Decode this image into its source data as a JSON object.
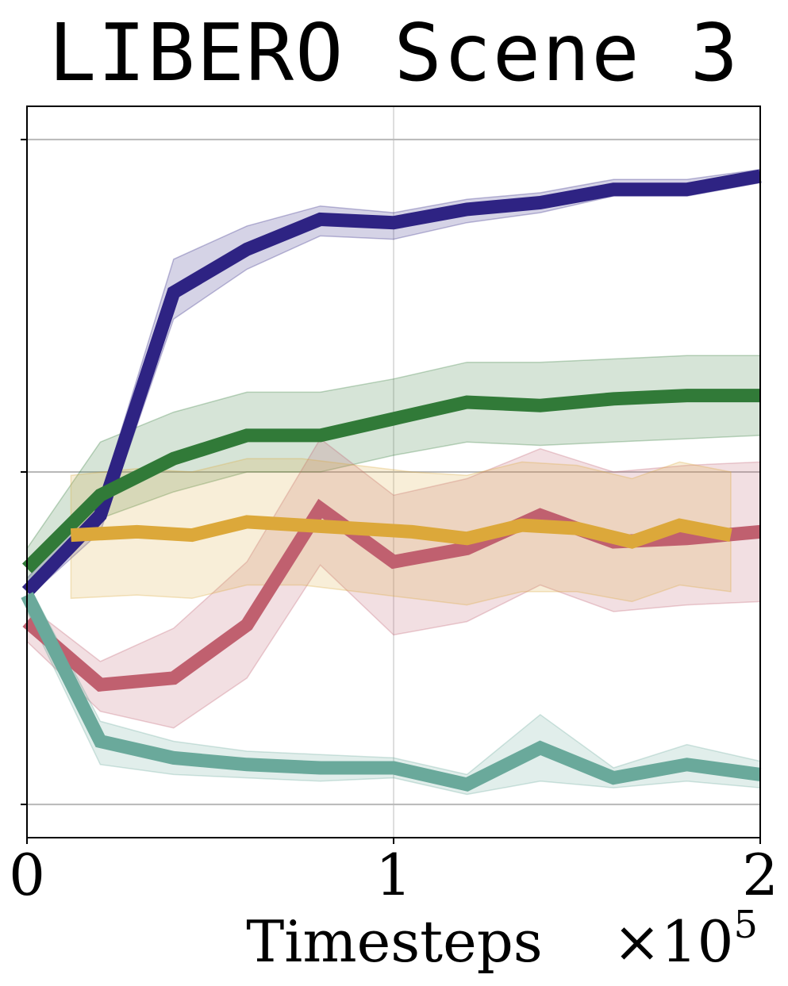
{
  "chart_data": {
    "type": "line",
    "title": "LIBERO Scene 3",
    "xlabel": "Timesteps",
    "x_multiplier_label": "×10",
    "x_multiplier_exp": "5",
    "xlim": [
      0,
      2
    ],
    "ylim": [
      -0.1,
      2.1
    ],
    "xticks": [
      {
        "v": 0,
        "label": "0"
      },
      {
        "v": 1,
        "label": "1"
      },
      {
        "v": 2,
        "label": "2"
      }
    ],
    "yticks": [
      0,
      1,
      2
    ],
    "grid": true,
    "series": [
      {
        "color": "#2e2383",
        "x": [
          0,
          0.2,
          0.4,
          0.6,
          0.8,
          1.0,
          1.2,
          1.4,
          1.6,
          1.8,
          2.0
        ],
        "y": [
          0.64,
          0.87,
          1.54,
          1.67,
          1.76,
          1.75,
          1.79,
          1.81,
          1.85,
          1.85,
          1.89
        ],
        "lower": [
          0.62,
          0.82,
          1.46,
          1.61,
          1.71,
          1.7,
          1.75,
          1.78,
          1.83,
          1.83,
          1.87
        ],
        "upper": [
          0.68,
          0.92,
          1.64,
          1.74,
          1.8,
          1.78,
          1.82,
          1.84,
          1.88,
          1.88,
          1.91
        ]
      },
      {
        "color": "#317a38",
        "x": [
          0,
          0.2,
          0.4,
          0.6,
          0.8,
          1.0,
          1.2,
          1.4,
          1.6,
          1.8,
          2.0
        ],
        "y": [
          0.71,
          0.93,
          1.04,
          1.11,
          1.11,
          1.16,
          1.21,
          1.2,
          1.22,
          1.23,
          1.23
        ],
        "lower": [
          0.66,
          0.86,
          0.94,
          1.0,
          1.0,
          1.05,
          1.09,
          1.08,
          1.09,
          1.1,
          1.11
        ],
        "upper": [
          0.77,
          1.09,
          1.18,
          1.24,
          1.24,
          1.28,
          1.33,
          1.33,
          1.34,
          1.35,
          1.35
        ]
      },
      {
        "color": "#c0606f",
        "x": [
          0,
          0.2,
          0.4,
          0.6,
          0.8,
          1.0,
          1.2,
          1.4,
          1.6,
          1.8,
          2.0
        ],
        "y": [
          0.55,
          0.36,
          0.38,
          0.54,
          0.89,
          0.73,
          0.77,
          0.87,
          0.79,
          0.8,
          0.82
        ],
        "lower": [
          0.49,
          0.28,
          0.23,
          0.38,
          0.72,
          0.51,
          0.55,
          0.66,
          0.58,
          0.6,
          0.61
        ],
        "upper": [
          0.6,
          0.43,
          0.53,
          0.73,
          1.1,
          0.93,
          0.98,
          1.07,
          1.0,
          1.02,
          1.03
        ]
      },
      {
        "color": "#dca83a",
        "x": [
          0.12,
          0.3,
          0.45,
          0.6,
          0.75,
          0.9,
          1.05,
          1.2,
          1.35,
          1.5,
          1.65,
          1.78,
          1.92
        ],
        "y": [
          0.81,
          0.82,
          0.81,
          0.85,
          0.84,
          0.83,
          0.82,
          0.8,
          0.84,
          0.83,
          0.79,
          0.84,
          0.81
        ],
        "lower": [
          0.62,
          0.63,
          0.62,
          0.66,
          0.66,
          0.64,
          0.62,
          0.6,
          0.64,
          0.64,
          0.61,
          0.66,
          0.64
        ],
        "upper": [
          0.99,
          1.01,
          1.0,
          1.04,
          1.04,
          1.02,
          1.0,
          0.99,
          1.03,
          1.02,
          0.98,
          1.03,
          1.0
        ]
      },
      {
        "color": "#6aa99b",
        "x": [
          0,
          0.2,
          0.4,
          0.6,
          0.8,
          1.0,
          1.2,
          1.4,
          1.6,
          1.8,
          2.0
        ],
        "y": [
          0.63,
          0.19,
          0.14,
          0.12,
          0.11,
          0.11,
          0.06,
          0.17,
          0.08,
          0.12,
          0.09
        ],
        "lower": [
          0.58,
          0.12,
          0.09,
          0.08,
          0.07,
          0.08,
          0.03,
          0.07,
          0.05,
          0.07,
          0.05
        ],
        "upper": [
          0.67,
          0.25,
          0.19,
          0.16,
          0.15,
          0.14,
          0.09,
          0.27,
          0.11,
          0.18,
          0.13
        ]
      }
    ]
  }
}
